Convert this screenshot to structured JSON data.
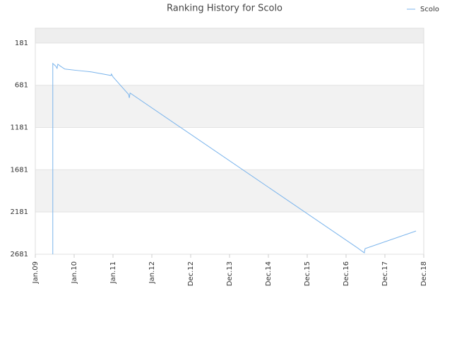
{
  "chart_data": {
    "type": "line",
    "title": "Ranking History for Scolo",
    "x": [
      0.45,
      0.45,
      0.53,
      0.56,
      0.58,
      0.65,
      0.76,
      1.09,
      1.45,
      1.95,
      1.96,
      2.0,
      2.4,
      2.42,
      2.44,
      8.27,
      8.47,
      8.49,
      9.8
    ],
    "series": [
      {
        "name": "Scolo",
        "color": "#7cb5ec",
        "values": [
          2681,
          423,
          456,
          481,
          431,
          456,
          489,
          506,
          523,
          565,
          548,
          581,
          789,
          831,
          773,
          2598,
          2664,
          2614,
          2406
        ]
      }
    ],
    "xlim": [
      0,
      10
    ],
    "xticks": [
      {
        "value": 0,
        "label": "Jan.09"
      },
      {
        "value": 1,
        "label": "Jan.10"
      },
      {
        "value": 2,
        "label": "Jan.11"
      },
      {
        "value": 3,
        "label": "Jan.12"
      },
      {
        "value": 4,
        "label": "Dec.12"
      },
      {
        "value": 5,
        "label": "Dec.13"
      },
      {
        "value": 6,
        "label": "Dec.14"
      },
      {
        "value": 7,
        "label": "Dec.15"
      },
      {
        "value": 8,
        "label": "Dec.16"
      },
      {
        "value": 9,
        "label": "Dec.17"
      },
      {
        "value": 10,
        "label": "Dec.18"
      }
    ],
    "ylim": [
      2681,
      6
    ],
    "yticks": [
      181,
      681,
      1181,
      1681,
      2181,
      2681
    ],
    "legend": "top-right",
    "grid": true
  }
}
